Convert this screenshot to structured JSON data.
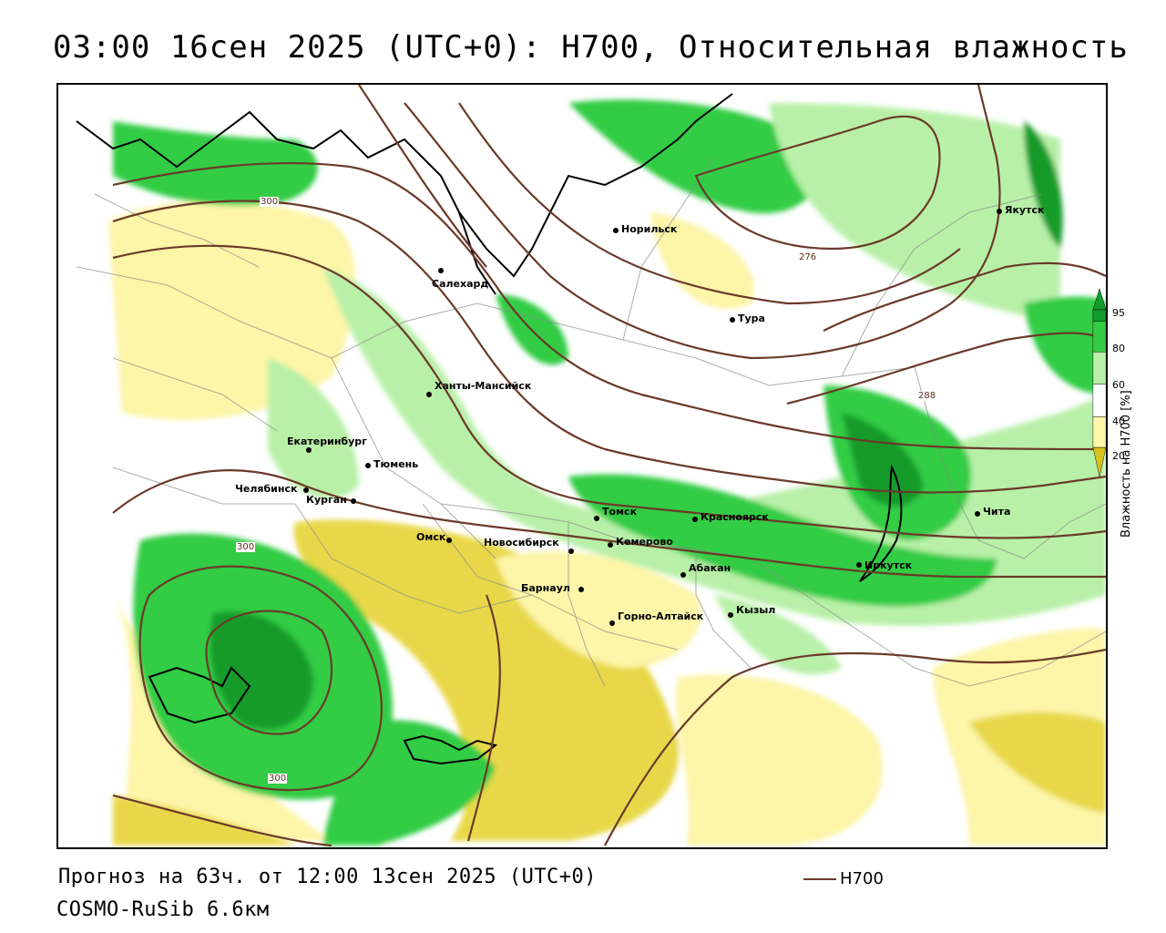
{
  "title": "03:00 16сен 2025 (UTC+0): H700, Относительная влажность",
  "forecast_line": "Прогноз на 63ч. от 12:00 13сен 2025 (UTC+0)",
  "model_line": "COSMO-RuSib 6.6км",
  "series_legend": {
    "name": "H700",
    "color": "#6b3a2a"
  },
  "colorbar": {
    "title": "Влажность на H700 [%]",
    "ticks": [
      "95",
      "80",
      "60",
      "40",
      "20"
    ],
    "colors": {
      "very_dry": "#d4c21e",
      "dry": "#fdf5a8",
      "mid": "#ffffff",
      "moist": "#b8f0a8",
      "wet": "#33cc44",
      "very_wet": "#139b2c"
    }
  },
  "isohypse_labels": [
    "300",
    "276",
    "288",
    "300",
    "300"
  ],
  "cities": [
    "Норильск",
    "Якутск",
    "Салехард",
    "Тура",
    "Ханты-Мансийск",
    "Екатеринбург",
    "Тюмень",
    "Челябинск",
    "Курган",
    "Омск",
    "Новосибирск",
    "Томск",
    "Кемерово",
    "Красноярск",
    "Абакан",
    "Барнаул",
    "Горно-Алтайск",
    "Кызыл",
    "Иркутск",
    "Чита"
  ]
}
